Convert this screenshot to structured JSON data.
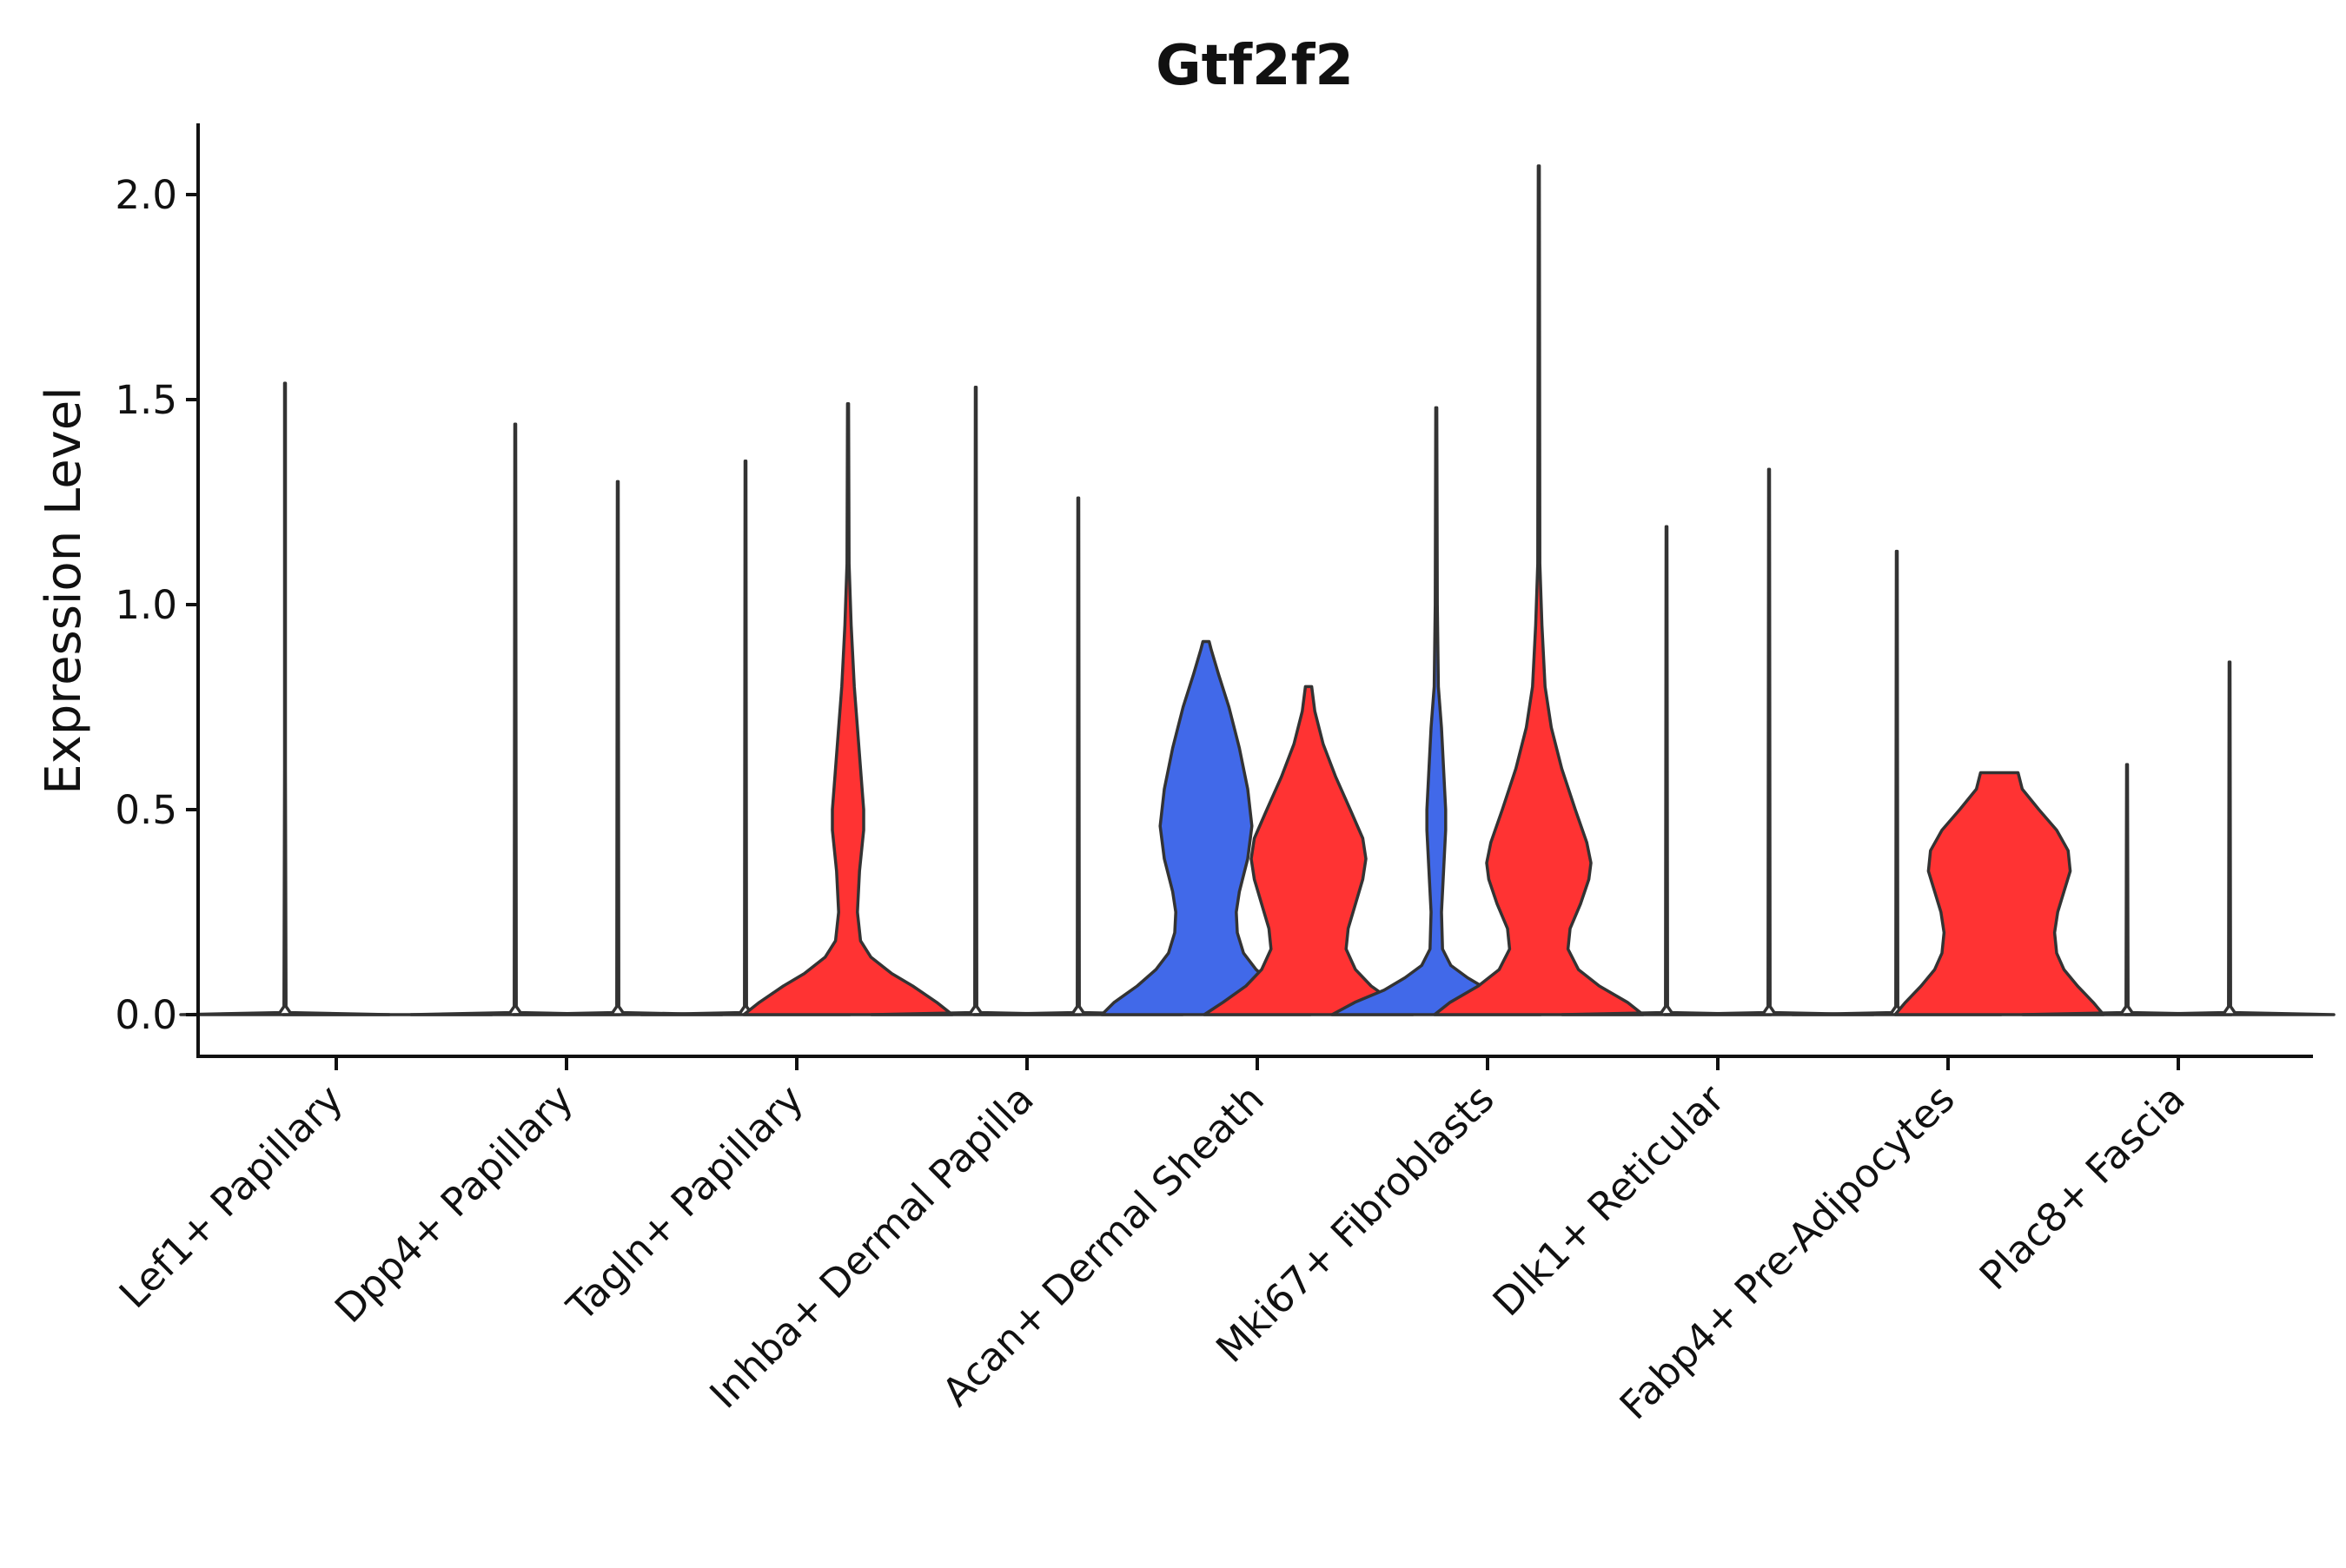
{
  "chart_data": {
    "type": "violin",
    "title": "Gtf2f2",
    "xlabel": "",
    "ylabel": "Expression Level",
    "ylim": [
      -0.1,
      2.18
    ],
    "yticks": [
      "0.0",
      "0.5",
      "1.0",
      "1.5",
      "2.0"
    ],
    "ytick_values": [
      0.0,
      0.5,
      1.0,
      1.5,
      2.0
    ],
    "grid": false,
    "legend": "none",
    "colors": {
      "group_1": "#4169E9",
      "group_2": "#FF3333",
      "empty": "#ffffff",
      "outline": "#333333"
    },
    "categories": [
      "Lef1+ Papillary",
      "Dpp4+ Papillary",
      "Tagln+ Papillary",
      "Inhba+ Dermal Papilla",
      "Acan+ Dermal Sheath",
      "Mki67+ Fibroblasts",
      "Dlk1+ Reticular",
      "Fabp4+ Pre-Adipocytes",
      "Plac8+ Fascia"
    ],
    "violins": [
      {
        "category": "Lef1+ Papillary",
        "group": 1,
        "filled": false,
        "max": 1.54,
        "profile": [
          [
            0,
            1
          ],
          [
            0.005,
            0.05
          ],
          [
            0.02,
            0.01
          ],
          [
            0.6,
            0.004
          ],
          [
            1.54,
            0.004
          ]
        ]
      },
      {
        "category": "Lef1+ Papillary",
        "group": 2,
        "filled": false,
        "max": 0.0,
        "profile": [
          [
            0,
            1
          ]
        ]
      },
      {
        "category": "Dpp4+ Papillary",
        "group": 1,
        "filled": false,
        "max": 1.44,
        "profile": [
          [
            0,
            1
          ],
          [
            0.005,
            0.05
          ],
          [
            0.02,
            0.01
          ],
          [
            1.44,
            0.004
          ]
        ]
      },
      {
        "category": "Dpp4+ Papillary",
        "group": 2,
        "filled": false,
        "max": 1.3,
        "profile": [
          [
            0,
            1
          ],
          [
            0.005,
            0.05
          ],
          [
            0.02,
            0.01
          ],
          [
            1.3,
            0.004
          ]
        ]
      },
      {
        "category": "Tagln+ Papillary",
        "group": 1,
        "filled": false,
        "max": 1.35,
        "profile": [
          [
            0,
            1
          ],
          [
            0.005,
            0.05
          ],
          [
            0.02,
            0.01
          ],
          [
            1.35,
            0.004
          ]
        ]
      },
      {
        "category": "Tagln+ Papillary",
        "group": 2,
        "filled": true,
        "max": 1.49,
        "profile": [
          [
            0,
            1
          ],
          [
            0.03,
            0.85
          ],
          [
            0.07,
            0.62
          ],
          [
            0.1,
            0.42
          ],
          [
            0.14,
            0.22
          ],
          [
            0.18,
            0.12
          ],
          [
            0.25,
            0.09
          ],
          [
            0.35,
            0.11
          ],
          [
            0.45,
            0.15
          ],
          [
            0.5,
            0.15
          ],
          [
            0.6,
            0.12
          ],
          [
            0.7,
            0.09
          ],
          [
            0.8,
            0.06
          ],
          [
            0.95,
            0.03
          ],
          [
            1.1,
            0.01
          ],
          [
            1.49,
            0.005
          ]
        ]
      },
      {
        "category": "Inhba+ Dermal Papilla",
        "group": 1,
        "filled": false,
        "max": 1.53,
        "profile": [
          [
            0,
            1
          ],
          [
            0.005,
            0.05
          ],
          [
            0.02,
            0.01
          ],
          [
            1.53,
            0.004
          ]
        ]
      },
      {
        "category": "Inhba+ Dermal Papilla",
        "group": 2,
        "filled": false,
        "max": 1.26,
        "profile": [
          [
            0,
            1
          ],
          [
            0.005,
            0.05
          ],
          [
            0.02,
            0.01
          ],
          [
            1.26,
            0.004
          ]
        ]
      },
      {
        "category": "Acan+ Dermal Sheath",
        "group": 1,
        "filled": true,
        "max": 0.91,
        "profile": [
          [
            0,
            1
          ],
          [
            0.03,
            0.88
          ],
          [
            0.07,
            0.66
          ],
          [
            0.11,
            0.48
          ],
          [
            0.15,
            0.36
          ],
          [
            0.2,
            0.3
          ],
          [
            0.25,
            0.29
          ],
          [
            0.3,
            0.32
          ],
          [
            0.38,
            0.4
          ],
          [
            0.46,
            0.44
          ],
          [
            0.55,
            0.4
          ],
          [
            0.65,
            0.32
          ],
          [
            0.75,
            0.22
          ],
          [
            0.83,
            0.12
          ],
          [
            0.89,
            0.05
          ],
          [
            0.91,
            0.03
          ]
        ]
      },
      {
        "category": "Acan+ Dermal Sheath",
        "group": 2,
        "filled": true,
        "max": 0.8,
        "profile": [
          [
            0,
            1
          ],
          [
            0.03,
            0.82
          ],
          [
            0.07,
            0.6
          ],
          [
            0.11,
            0.45
          ],
          [
            0.16,
            0.36
          ],
          [
            0.21,
            0.38
          ],
          [
            0.27,
            0.45
          ],
          [
            0.33,
            0.52
          ],
          [
            0.38,
            0.55
          ],
          [
            0.43,
            0.52
          ],
          [
            0.5,
            0.4
          ],
          [
            0.58,
            0.26
          ],
          [
            0.66,
            0.14
          ],
          [
            0.74,
            0.06
          ],
          [
            0.8,
            0.03
          ]
        ]
      },
      {
        "category": "Mki67+ Fibroblasts",
        "group": 1,
        "filled": true,
        "max": 1.48,
        "profile": [
          [
            0,
            1
          ],
          [
            0.03,
            0.78
          ],
          [
            0.06,
            0.5
          ],
          [
            0.09,
            0.3
          ],
          [
            0.12,
            0.14
          ],
          [
            0.16,
            0.06
          ],
          [
            0.25,
            0.05
          ],
          [
            0.35,
            0.07
          ],
          [
            0.45,
            0.09
          ],
          [
            0.5,
            0.09
          ],
          [
            0.6,
            0.07
          ],
          [
            0.7,
            0.05
          ],
          [
            0.8,
            0.02
          ],
          [
            1.0,
            0.01
          ],
          [
            1.48,
            0.005
          ]
        ]
      },
      {
        "category": "Mki67+ Fibroblasts",
        "group": 2,
        "filled": true,
        "max": 2.07,
        "profile": [
          [
            0,
            1
          ],
          [
            0.03,
            0.85
          ],
          [
            0.07,
            0.58
          ],
          [
            0.11,
            0.38
          ],
          [
            0.16,
            0.28
          ],
          [
            0.21,
            0.3
          ],
          [
            0.27,
            0.4
          ],
          [
            0.33,
            0.48
          ],
          [
            0.37,
            0.5
          ],
          [
            0.42,
            0.46
          ],
          [
            0.5,
            0.35
          ],
          [
            0.6,
            0.22
          ],
          [
            0.7,
            0.12
          ],
          [
            0.8,
            0.06
          ],
          [
            0.95,
            0.03
          ],
          [
            1.1,
            0.01
          ],
          [
            2.07,
            0.005
          ]
        ]
      },
      {
        "category": "Dlk1+ Reticular",
        "group": 1,
        "filled": false,
        "max": 1.19,
        "profile": [
          [
            0,
            1
          ],
          [
            0.005,
            0.05
          ],
          [
            0.02,
            0.01
          ],
          [
            1.19,
            0.004
          ]
        ]
      },
      {
        "category": "Dlk1+ Reticular",
        "group": 2,
        "filled": false,
        "max": 1.33,
        "profile": [
          [
            0,
            1
          ],
          [
            0.005,
            0.05
          ],
          [
            0.02,
            0.01
          ],
          [
            1.33,
            0.004
          ]
        ]
      },
      {
        "category": "Fabp4+ Pre-Adipocytes",
        "group": 1,
        "filled": false,
        "max": 1.13,
        "profile": [
          [
            0,
            1
          ],
          [
            0.005,
            0.05
          ],
          [
            0.02,
            0.01
          ],
          [
            1.13,
            0.004
          ]
        ]
      },
      {
        "category": "Fabp4+ Pre-Adipocytes",
        "group": 2,
        "filled": true,
        "max": 0.59,
        "profile": [
          [
            0,
            1
          ],
          [
            0.03,
            0.9
          ],
          [
            0.07,
            0.75
          ],
          [
            0.11,
            0.62
          ],
          [
            0.15,
            0.55
          ],
          [
            0.2,
            0.53
          ],
          [
            0.25,
            0.56
          ],
          [
            0.3,
            0.62
          ],
          [
            0.35,
            0.68
          ],
          [
            0.4,
            0.66
          ],
          [
            0.45,
            0.55
          ],
          [
            0.5,
            0.38
          ],
          [
            0.55,
            0.22
          ],
          [
            0.59,
            0.18
          ]
        ]
      },
      {
        "category": "Plac8+ Fascia",
        "group": 1,
        "filled": false,
        "max": 0.61,
        "profile": [
          [
            0,
            1
          ],
          [
            0.005,
            0.05
          ],
          [
            0.02,
            0.01
          ],
          [
            0.61,
            0.004
          ]
        ]
      },
      {
        "category": "Plac8+ Fascia",
        "group": 2,
        "filled": false,
        "max": 0.86,
        "profile": [
          [
            0,
            1
          ],
          [
            0.005,
            0.05
          ],
          [
            0.02,
            0.01
          ],
          [
            0.86,
            0.004
          ]
        ]
      }
    ]
  }
}
